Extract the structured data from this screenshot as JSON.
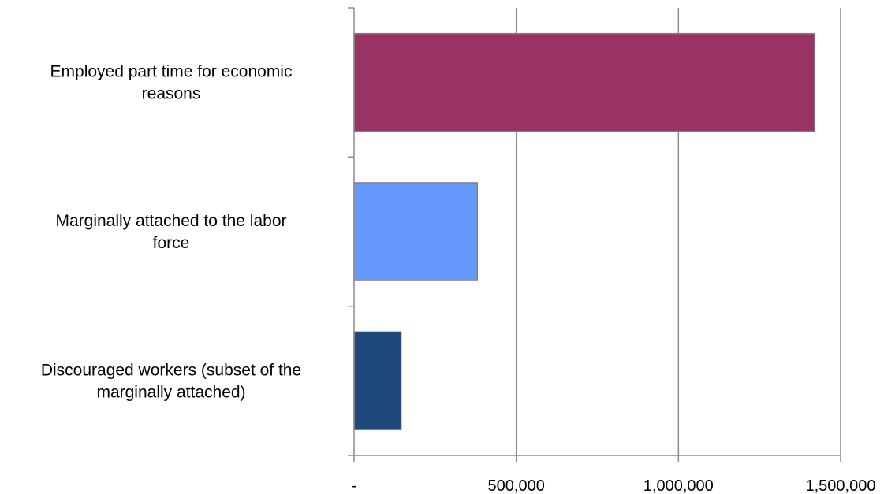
{
  "chart_data": {
    "type": "bar",
    "orientation": "horizontal",
    "title": "",
    "xlabel": "",
    "ylabel": "",
    "xlim": [
      0,
      1500000
    ],
    "grid": "vertical",
    "legend": "none",
    "categories": [
      [
        "Employed part time for economic",
        "reasons"
      ],
      [
        "Marginally attached to the labor",
        "force"
      ],
      [
        "Discouraged workers (subset of the",
        "marginally attached)"
      ]
    ],
    "values": [
      1420000,
      380000,
      145000
    ],
    "colors": [
      "#993366",
      "#6699FF",
      "#1F497D"
    ],
    "ticks": [
      {
        "value": 0,
        "label": "-"
      },
      {
        "value": 500000,
        "label": "500,000"
      },
      {
        "value": 1000000,
        "label": "1,000,000"
      },
      {
        "value": 1500000,
        "label": "1,500,000"
      }
    ]
  }
}
